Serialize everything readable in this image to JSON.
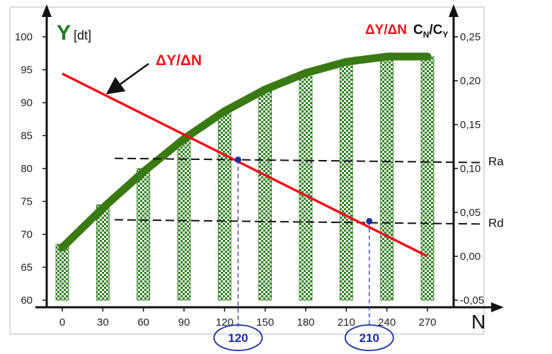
{
  "chart_data": {
    "type": "bar",
    "x": [
      0,
      30,
      60,
      90,
      120,
      150,
      180,
      210,
      240,
      270
    ],
    "x_tick_labels": [
      "0",
      "30",
      "60",
      "90",
      "120",
      "150",
      "180",
      "210",
      "240",
      "270"
    ],
    "x_axis_label": "N",
    "y_left": {
      "label": "Y",
      "unit": "[dt]",
      "ticks": [
        "60",
        "65",
        "70",
        "75",
        "80",
        "85",
        "90",
        "95",
        "100"
      ],
      "range": [
        60,
        102
      ]
    },
    "y_right": {
      "label_main": "C",
      "label_sub1": "N",
      "label_sep": "/C",
      "label_sub2": "Y",
      "ticks": [
        "-0,05",
        "0,00",
        "0,05",
        "0,10",
        "0,15",
        "0,20",
        "0,25"
      ],
      "range": [
        -0.05,
        0.25
      ]
    },
    "bar_series": {
      "values": [
        68.5,
        74.5,
        80,
        84.5,
        88.5,
        92,
        94.5,
        96,
        96.5,
        97
      ]
    },
    "curve_series": {
      "x": [
        0,
        30,
        60,
        90,
        120,
        150,
        180,
        210,
        240,
        270
      ],
      "y": [
        68,
        74,
        79.5,
        84.5,
        88.7,
        92,
        94.5,
        96.2,
        97,
        97
      ]
    },
    "line_series": {
      "label": "ΔY/ΔN",
      "x": [
        0,
        270
      ],
      "y": [
        0.208,
        0.0
      ]
    },
    "top_label": "ΔY/ΔN",
    "ref_lines": [
      {
        "label": "Ra",
        "y": 0.11
      },
      {
        "label": "Rd",
        "y": 0.04
      }
    ],
    "points": [
      {
        "x": 130,
        "y": 0.11,
        "highlight": "120"
      },
      {
        "x": 227,
        "y": 0.04,
        "highlight": "210"
      }
    ],
    "colors": {
      "bar": "#2e7d1f",
      "curve": "#3a7a12",
      "line": "#e8141c",
      "point": "#1a2fa0"
    }
  }
}
